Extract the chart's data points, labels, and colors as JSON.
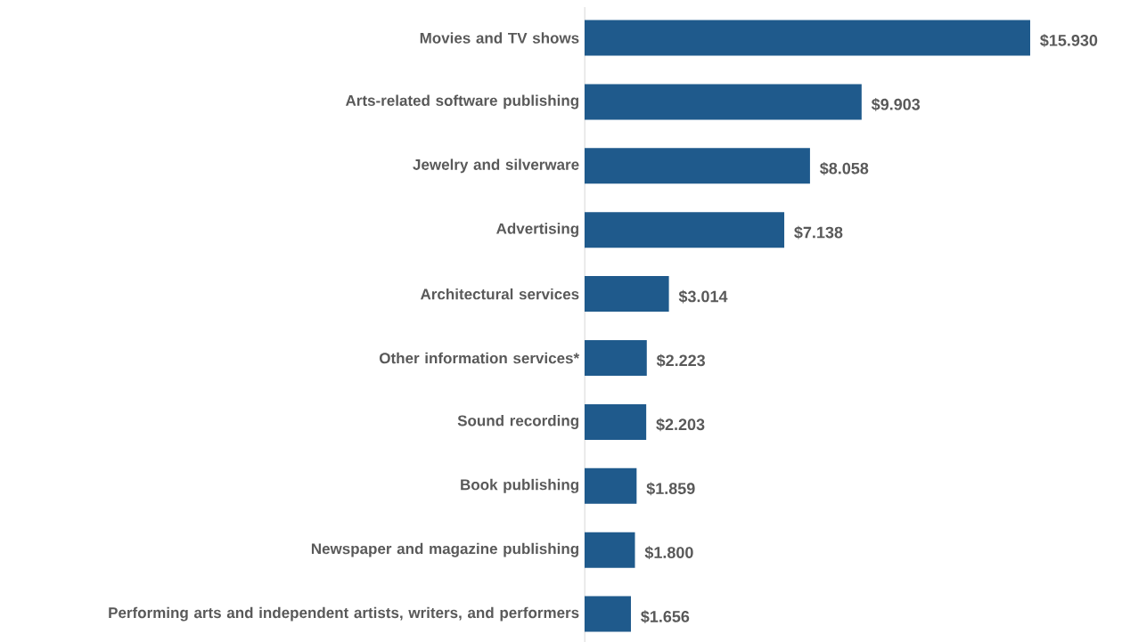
{
  "chart_data": {
    "type": "bar",
    "orientation": "horizontal",
    "categories": [
      "Movies and TV shows",
      "Arts-related software publishing",
      "Jewelry and silverware",
      "Advertising",
      "Architectural services",
      "Other information services*",
      "Sound recording",
      "Book publishing",
      "Newspaper and magazine publishing",
      "Performing arts and independent artists, writers, and performers"
    ],
    "values": [
      15.93,
      9.903,
      8.058,
      7.138,
      3.014,
      2.223,
      2.203,
      1.859,
      1.8,
      1.656
    ],
    "value_labels": [
      "$15.930",
      "$9.903",
      "$8.058",
      "$7.138",
      "$3.014",
      "$2.223",
      "$2.203",
      "$1.859",
      "$1.800",
      "$1.656"
    ],
    "color": "#1f5a8c"
  }
}
